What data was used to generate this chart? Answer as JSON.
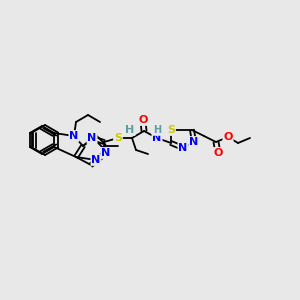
{
  "background_color": "#e8e8e8",
  "atom_colors": {
    "N": "#0000ff",
    "O": "#ff0000",
    "S": "#cccc00",
    "C": "#000000",
    "H": "#5f9ea0"
  },
  "bond_color": "#000000",
  "lw": 1.3
}
